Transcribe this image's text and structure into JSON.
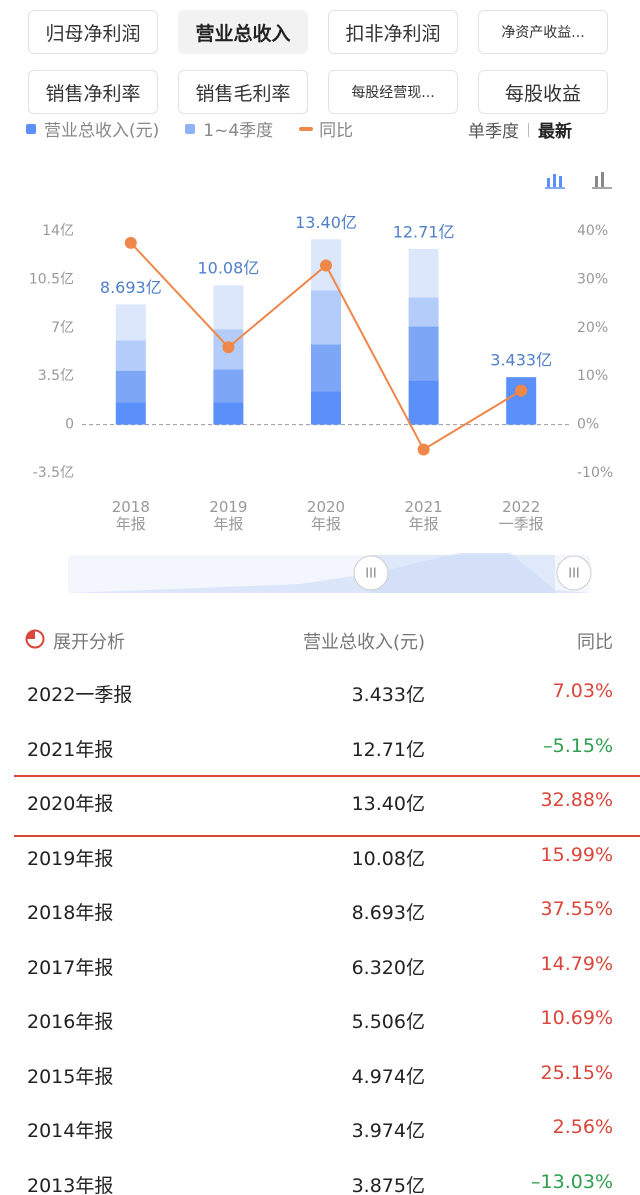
{
  "tabs": [
    {
      "label": "归母净利润"
    },
    {
      "label": "营业总收入",
      "selected": true
    },
    {
      "label": "扣非净利润"
    },
    {
      "label": "净资产收益..."
    },
    {
      "label": "销售净利率"
    },
    {
      "label": "销售毛利率"
    },
    {
      "label": "每股经营现..."
    },
    {
      "label": "每股收益"
    }
  ],
  "chart_controls": [
    "单季度",
    "最新"
  ],
  "chart_data": {
    "type": "bar",
    "legend": [
      {
        "label": "营业总收入(元)",
        "color": "#5b8ff9"
      },
      {
        "label": "1~4季度",
        "color": "#8fb2f8"
      }
    ],
    "categories": [
      "2018\n年报",
      "2019\n年报",
      "2020\n年报",
      "2021\n年报",
      "2022\n一季报"
    ],
    "series": [
      {
        "color": "#5b8ff9",
        "values": [
          1.6,
          1.6,
          2.4,
          3.2,
          3.433
        ]
      },
      {
        "color": "#7ea6f7",
        "values": [
          2.3,
          2.4,
          3.4,
          3.9,
          null
        ]
      },
      {
        "color": "#b4ccfa",
        "values": [
          2.2,
          2.9,
          3.9,
          2.1,
          null
        ]
      },
      {
        "color": "#dce7fc",
        "values": [
          2.593,
          3.18,
          3.7,
          3.51,
          null
        ]
      },
      {
        "name": "同比",
        "type": "line",
        "axis": "y2",
        "color": "#f0874a",
        "values": [
          37.55,
          15.99,
          32.88,
          -5.15,
          7.03
        ]
      }
    ],
    "totals": [
      8.693,
      10.08,
      13.4,
      12.71,
      3.433
    ],
    "total_labels": [
      "8.693亿",
      "10.08亿",
      "13.40亿",
      "12.71亿",
      "3.433亿"
    ],
    "ylim": [
      -3.5,
      14
    ],
    "yticks": [
      {
        "value": -3.5,
        "label": "-3.5亿"
      },
      0,
      {
        "value": 3.5,
        "label": "3.5亿"
      },
      {
        "value": 7,
        "label": "7亿"
      },
      {
        "value": 10.5,
        "label": "10.5亿"
      },
      {
        "value": 14,
        "label": "14亿"
      }
    ],
    "y2lim": [
      -10,
      40
    ],
    "y2ticks": [
      {
        "value": -10,
        "label": "-10%"
      },
      {
        "value": 0,
        "label": "0%"
      },
      {
        "value": 10,
        "label": "10%"
      },
      {
        "value": 20,
        "label": "20%"
      },
      {
        "value": 30,
        "label": "30%"
      },
      {
        "value": 40,
        "label": "40%"
      }
    ],
    "grid": false,
    "zero_line": true
  },
  "table": {
    "header": [
      "展开分析",
      "营业总收入(元)",
      "同比"
    ],
    "rows": [
      {
        "cells": [
          "2022一季报",
          "3.433亿",
          "7.03%"
        ],
        "color": "#d9463b"
      },
      {
        "cells": [
          "2021年报",
          "12.71亿",
          "–5.15%"
        ],
        "color": "#2f9e4f"
      },
      {
        "cells": [
          "2020年报",
          "13.40亿",
          "32.88%"
        ],
        "color": "#d9463b",
        "selected": true
      },
      {
        "cells": [
          "2019年报",
          "10.08亿",
          "15.99%"
        ],
        "color": "#d9463b"
      },
      {
        "cells": [
          "2018年报",
          "8.693亿",
          "37.55%"
        ],
        "color": "#d9463b"
      },
      {
        "cells": [
          "2017年报",
          "6.320亿",
          "14.79%"
        ],
        "color": "#d9463b"
      },
      {
        "cells": [
          "2016年报",
          "5.506亿",
          "10.69%"
        ],
        "color": "#d9463b"
      },
      {
        "cells": [
          "2015年报",
          "4.974亿",
          "25.15%"
        ],
        "color": "#d9463b"
      },
      {
        "cells": [
          "2014年报",
          "3.974亿",
          "2.56%"
        ],
        "color": "#d9463b"
      },
      {
        "cells": [
          "2013年报",
          "3.875亿",
          "–13.03%"
        ],
        "color": "#2f9e4f"
      }
    ]
  }
}
